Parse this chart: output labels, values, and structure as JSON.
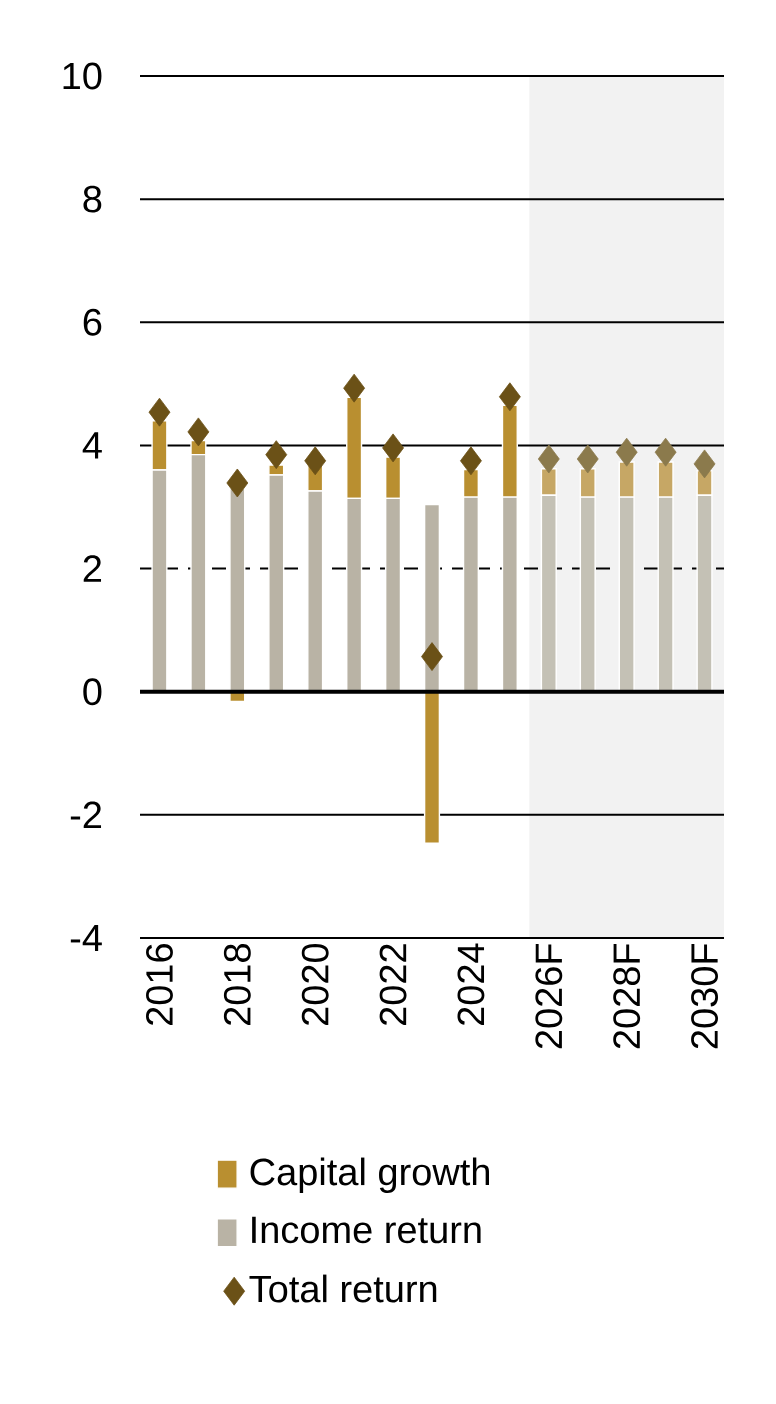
{
  "chart_data": {
    "type": "bar",
    "categories": [
      "2016",
      null,
      "2018",
      null,
      "2020",
      null,
      "2022",
      null,
      "2024",
      null,
      "2026F",
      null,
      "2028F",
      null,
      "2030F"
    ],
    "series": [
      {
        "name": "Income return",
        "color": "#b9b3a5",
        "colors": [
          "#b9b3a5",
          "#b9b3a5",
          "#b9b3a5",
          "#b9b3a5",
          "#b9b3a5",
          "#b9b3a5",
          "#b9b3a5",
          "#b9b3a5",
          "#b9b3a5",
          "#b9b3a5",
          "#c4c1b5",
          "#c4c1b5",
          "#c4c1b5",
          "#c4c1b5",
          "#c4c1b5"
        ],
        "values": [
          3.6,
          3.85,
          3.3,
          3.52,
          3.26,
          3.14,
          3.14,
          3.04,
          3.16,
          3.16,
          3.19,
          3.16,
          3.16,
          3.16,
          3.19
        ]
      },
      {
        "name": "Capital growth",
        "color": "#b98f30",
        "colors": [
          "#b98f30",
          "#b98f30",
          "#b98f30",
          "#b98f30",
          "#b98f30",
          "#b98f30",
          "#b98f30",
          "#b98f30",
          "#b98f30",
          "#b98f30",
          "#c6a765",
          "#c6a765",
          "#c6a765",
          "#c6a765",
          "#c6a765"
        ],
        "values": [
          0.8,
          0.23,
          -0.16,
          0.16,
          0.45,
          1.64,
          0.67,
          -2.46,
          0.45,
          1.49,
          0.43,
          0.46,
          0.57,
          0.57,
          0.4
        ]
      },
      {
        "name": "Total return",
        "type": "scatter",
        "color": "#6b5117",
        "colors": [
          "#6b5117",
          "#6b5117",
          "#6b5117",
          "#6b5117",
          "#6b5117",
          "#6b5117",
          "#6b5117",
          "#6b5117",
          "#6b5117",
          "#6b5117",
          "#8b7a4c",
          "#8b7a4c",
          "#8b7a4c",
          "#8b7a4c",
          "#8b7a4c"
        ],
        "values": [
          4.54,
          4.22,
          3.39,
          3.85,
          3.75,
          4.93,
          3.96,
          0.57,
          3.75,
          4.79,
          3.78,
          3.78,
          3.89,
          3.89,
          3.7
        ]
      }
    ],
    "stacked": true,
    "marker": "diamond",
    "ylim": [
      -4,
      10
    ],
    "yticks": [
      -4,
      -2,
      0,
      2,
      4,
      6,
      8,
      10
    ],
    "grid": "y",
    "legend": "bottom",
    "bands": [
      {
        "axis": "x",
        "from": "2026F",
        "to": "2030F",
        "color": "#f2f2f2"
      }
    ],
    "ref_lines": [
      {
        "axis": "y",
        "value": 2,
        "line_style": "dashed"
      }
    ]
  }
}
